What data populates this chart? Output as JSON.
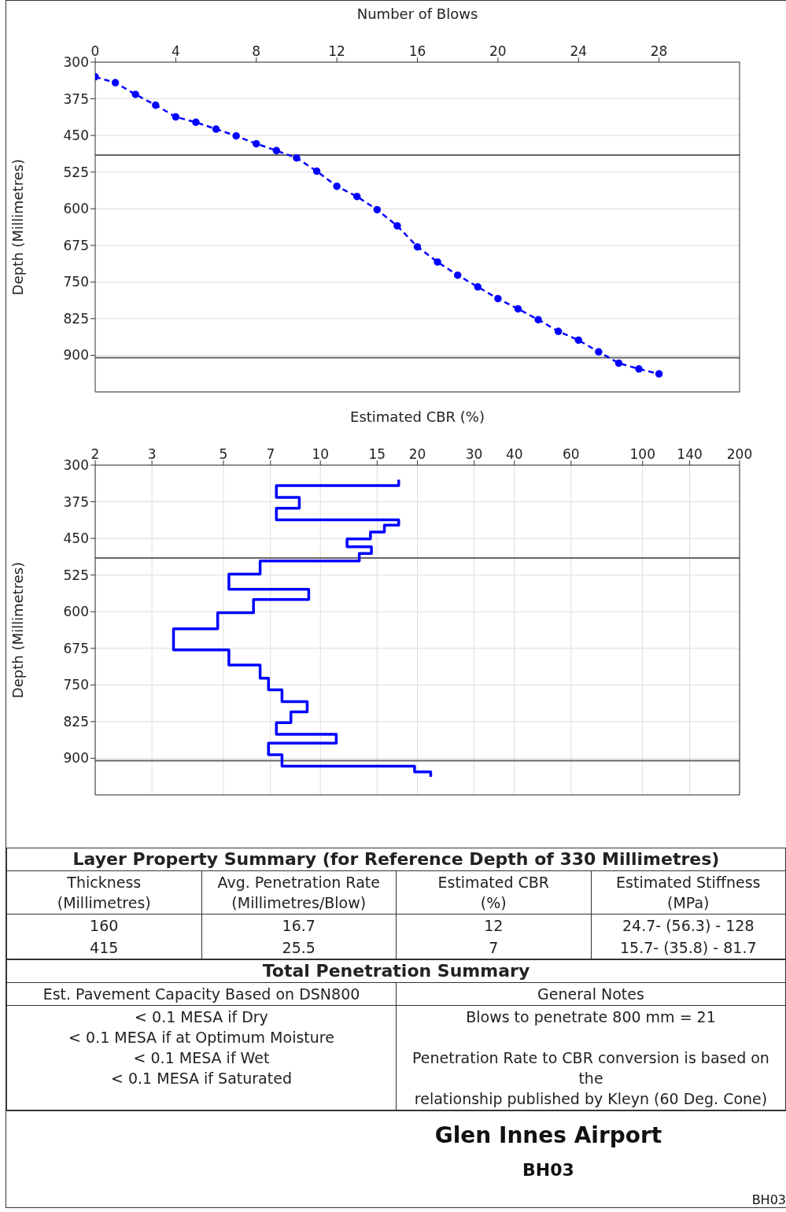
{
  "chart_data": [
    {
      "type": "line",
      "xlabel": "Number of Blows",
      "ylabel": "Depth (Millimetres)",
      "x": [
        0,
        1,
        2,
        3,
        4,
        5,
        6,
        7,
        8,
        9,
        10,
        11,
        12,
        13,
        14,
        15,
        16,
        17,
        18,
        19,
        20,
        21,
        22,
        23,
        24,
        25,
        26,
        27,
        28
      ],
      "series": [
        {
          "color": "#0000ff",
          "values": [
            330,
            342,
            366,
            388,
            412,
            423,
            437,
            451,
            467,
            481,
            496,
            523,
            554,
            575,
            602,
            635,
            678,
            709,
            736,
            760,
            784,
            805,
            827,
            851,
            869,
            893,
            916,
            928,
            938
          ]
        }
      ],
      "marker": "circle",
      "line_style": "dashed",
      "xlim": [
        0,
        32
      ],
      "xticks": [
        0,
        4,
        8,
        12,
        16,
        20,
        24,
        28
      ],
      "ylim": [
        975,
        300
      ],
      "yticks": [
        300,
        375,
        450,
        525,
        600,
        675,
        750,
        825,
        900
      ],
      "grid": "y",
      "ref_lines": [
        {
          "axis": "y",
          "value": 490,
          "color": "#666666"
        },
        {
          "axis": "y",
          "value": 905,
          "color": "#666666"
        }
      ]
    },
    {
      "type": "line",
      "xlabel": "Estimated CBR (%)",
      "ylabel": "Depth (Millimetres)",
      "series": [
        {
          "color": "#0000ff",
          "x": [
            17.5,
            17.5,
            7.3,
            7.3,
            8.6,
            8.6,
            7.3,
            7.3,
            17.5,
            17.5,
            15.8,
            15.8,
            14.3,
            14.3,
            12.1,
            12.1,
            14.4,
            14.4,
            13.2,
            13.2,
            6.5,
            6.5,
            5.2,
            5.2,
            9.2,
            9.2,
            6.2,
            6.2,
            4.8,
            4.8,
            3.5,
            3.5,
            5.2,
            5.2,
            6.5,
            6.5,
            6.9,
            6.9,
            7.6,
            7.6,
            9.1,
            9.1,
            8.1,
            8.1,
            7.3,
            7.3,
            11.2,
            11.2,
            6.9,
            6.9,
            7.6,
            7.6,
            19.6,
            19.6,
            22,
            22
          ],
          "values": [
            330,
            342,
            342,
            366,
            366,
            388,
            388,
            412,
            412,
            423,
            423,
            437,
            437,
            451,
            451,
            467,
            467,
            481,
            481,
            496,
            496,
            523,
            523,
            554,
            554,
            575,
            575,
            602,
            602,
            635,
            635,
            678,
            678,
            709,
            709,
            736,
            736,
            760,
            760,
            784,
            784,
            805,
            805,
            827,
            827,
            851,
            851,
            869,
            869,
            893,
            893,
            916,
            916,
            928,
            928,
            938
          ]
        }
      ],
      "marker": "none",
      "line_style": "solid",
      "log": "x",
      "xlim": [
        2,
        200
      ],
      "xticks": [
        2,
        3,
        5,
        7,
        10,
        15,
        20,
        30,
        40,
        60,
        100,
        140,
        200
      ],
      "ylim": [
        975,
        300
      ],
      "yticks": [
        300,
        375,
        450,
        525,
        600,
        675,
        750,
        825,
        900
      ],
      "grid": true,
      "ref_lines": [
        {
          "axis": "y",
          "value": 490,
          "color": "#666666"
        },
        {
          "axis": "y",
          "value": 905,
          "color": "#666666"
        }
      ]
    },
    {
      "type": "other",
      "title": "Layer Property Summary (for Reference Depth of 330 Millimetres)",
      "annotations": [
        "Thickness\n(Millimetres)",
        "Avg. Penetration Rate\n(Millimetres/Blow)",
        "Estimated CBR\n(%)",
        "Estimated Stiffness\n(MPa)",
        "160",
        "16.7",
        "12",
        "24.7- (56.3) - 128",
        "415",
        "25.5",
        "7",
        "15.7- (35.8) - 81.7"
      ]
    },
    {
      "type": "other",
      "title": "Total Penetration Summary",
      "annotations": [
        "Est. Pavement Capacity Based on DSN800",
        "General Notes",
        "< 0.1 MESA if Dry\n< 0.1 MESA if at Optimum Moisture\n< 0.1 MESA if Wet\n< 0.1 MESA if Saturated",
        "Blows to penetrate 800 mm = 21\n\nPenetration Rate to CBR conversion is based on the\nrelationship published by Kleyn (60 Deg. Cone)"
      ]
    },
    {
      "type": "other",
      "title": "Glen Innes Airport",
      "subtitle": "BH03",
      "annotations": [
        "BH03"
      ]
    }
  ]
}
